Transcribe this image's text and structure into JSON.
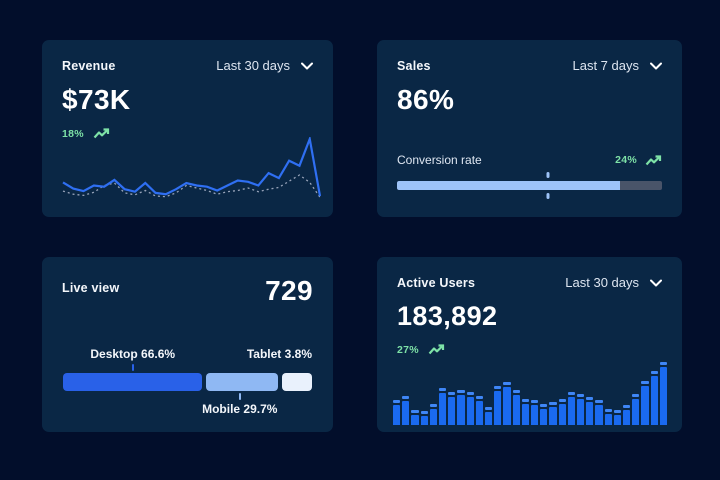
{
  "page": {
    "background": "#020e2b",
    "card_background": "#0a2745",
    "accent_blue": "#2f6ff2",
    "positive_green": "#7ee2a7"
  },
  "cards": {
    "revenue": {
      "title": "Revenue",
      "period": "Last 30 days",
      "value": "$73K",
      "delta": "18%"
    },
    "sales": {
      "title": "Sales",
      "period": "Last 7 days",
      "value": "86%",
      "delta": "24%",
      "metric_label": "Conversion rate"
    },
    "live_view": {
      "title": "Live view",
      "value": "729"
    },
    "active_users": {
      "title": "Active Users",
      "period": "Last 30 days",
      "value": "183,892",
      "delta": "27%"
    }
  },
  "icons": {
    "period_dropdown": "chevron-down",
    "delta_trend": "trending-up"
  },
  "chart_data": [
    {
      "id": "revenue-trend",
      "type": "line",
      "title": "Revenue - Last 30 days",
      "ylim": [
        0,
        100
      ],
      "grid": false,
      "axes": "hidden",
      "series": [
        {
          "name": "current period",
          "style": "solid",
          "color": "#2f6ff2",
          "values": [
            30,
            20,
            16,
            25,
            23,
            34,
            19,
            15,
            29,
            13,
            11,
            19,
            29,
            25,
            23,
            17,
            25,
            33,
            31,
            25,
            45,
            37,
            65,
            57,
            100,
            8
          ]
        },
        {
          "name": "previous period",
          "style": "dotted",
          "color": "#97a3b9",
          "values": [
            16,
            11,
            9,
            14,
            25,
            29,
            13,
            10,
            17,
            8,
            7,
            13,
            25,
            21,
            17,
            11,
            15,
            17,
            21,
            15,
            19,
            22,
            32,
            42,
            30,
            6
          ]
        }
      ]
    },
    {
      "id": "conversion-progress",
      "type": "progress",
      "label": "Conversion rate",
      "value_percent": 86,
      "fill_percent": 84,
      "marker_percent": 57,
      "fill_color": "#9dc3f8",
      "track_color": "#495469"
    },
    {
      "id": "device-split",
      "type": "stacked-bar",
      "title": "Live view device split",
      "segments": [
        {
          "name": "Desktop",
          "label": "Desktop 66.6%",
          "value": 66.6,
          "color": "#2961e8",
          "display_width": 56,
          "label_position": "top",
          "label_anchor_percent": 28
        },
        {
          "name": "Mobile",
          "label": "Mobile 29.7%",
          "value": 29.7,
          "color": "#8fb8f3",
          "display_width": 29,
          "label_position": "bottom",
          "label_anchor_percent": 71
        },
        {
          "name": "Tablet",
          "label": "Tablet 3.8%",
          "value": 3.8,
          "color": "#e9f1fc",
          "display_width": 12,
          "label_position": "top-right"
        }
      ]
    },
    {
      "id": "active-users-bars",
      "type": "bar",
      "title": "Active Users - Last 30 days",
      "color": "#1a6af0",
      "cap_color": "#3f86f6",
      "ylim": [
        0,
        100
      ],
      "values": [
        40,
        46,
        24,
        22,
        34,
        58,
        52,
        55,
        52,
        46,
        28,
        62,
        68,
        55,
        42,
        40,
        34,
        36,
        42,
        52,
        50,
        44,
        40,
        26,
        24,
        32,
        50,
        70,
        85,
        100
      ]
    }
  ]
}
